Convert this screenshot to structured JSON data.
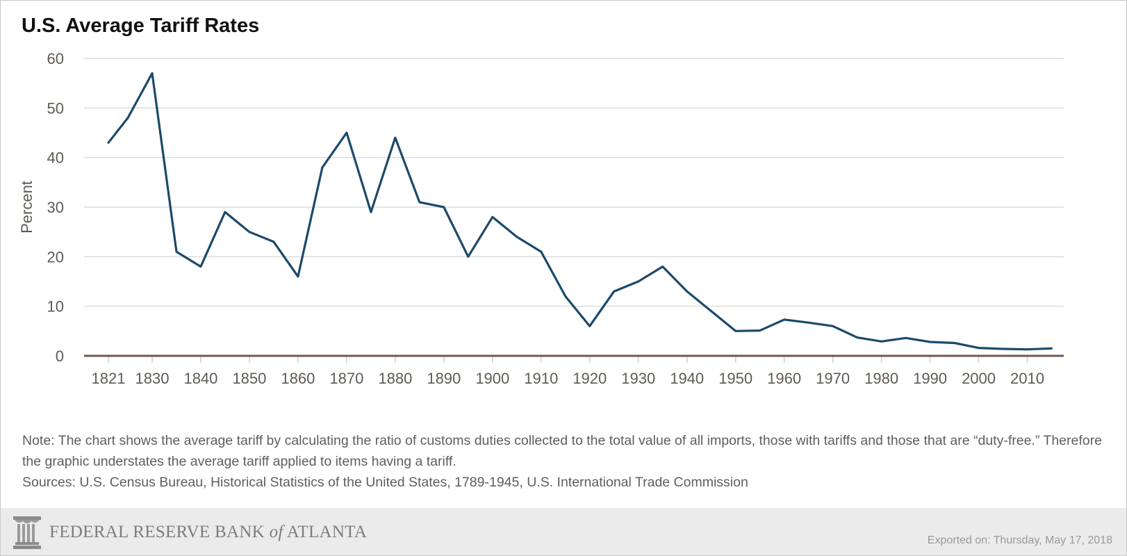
{
  "chart_data": {
    "type": "line",
    "title": "U.S. Average Tariff Rates",
    "xlabel": "",
    "ylabel": "Percent",
    "ylim": [
      0,
      60
    ],
    "yticks": [
      0,
      10,
      20,
      30,
      40,
      50,
      60
    ],
    "xticks": [
      1821,
      1830,
      1840,
      1850,
      1860,
      1870,
      1880,
      1890,
      1900,
      1910,
      1920,
      1930,
      1940,
      1950,
      1960,
      1970,
      1980,
      1990,
      2000,
      2010
    ],
    "grid": true,
    "legend": "none",
    "color": "#1b4a6b",
    "series": [
      {
        "name": "Average tariff",
        "x": [
          1821,
          1825,
          1830,
          1835,
          1840,
          1845,
          1850,
          1855,
          1860,
          1865,
          1870,
          1875,
          1880,
          1885,
          1890,
          1895,
          1900,
          1905,
          1910,
          1915,
          1920,
          1925,
          1930,
          1935,
          1940,
          1945,
          1950,
          1955,
          1960,
          1965,
          1970,
          1975,
          1980,
          1985,
          1990,
          1995,
          2000,
          2005,
          2010,
          2015
        ],
        "values": [
          43,
          48,
          57,
          21,
          18,
          29,
          25,
          23,
          16,
          38,
          45,
          29,
          44,
          31,
          30,
          20,
          28,
          24,
          21,
          12,
          6,
          13,
          15,
          18,
          13,
          9,
          5,
          5.1,
          7.3,
          6.7,
          6,
          3.7,
          2.9,
          3.6,
          2.8,
          2.6,
          1.6,
          1.4,
          1.3,
          1.5
        ]
      }
    ]
  },
  "notes": {
    "note": "Note: The chart shows the average tariff by calculating the ratio of customs duties collected to the total value of all imports, those with tariffs and those that are “duty-free.” Therefore the graphic understates the average tariff applied to items having a tariff.",
    "sources": "Sources: U.S. Census Bureau, Historical Statistics of the United States, 1789-1945, U.S. International Trade Commission"
  },
  "footer": {
    "logo_text_1": "FEDERAL RESERVE BANK ",
    "logo_text_of": "of",
    "logo_text_2": " ATLANTA",
    "export_text": "Exported on: Thursday, May 17, 2018"
  }
}
